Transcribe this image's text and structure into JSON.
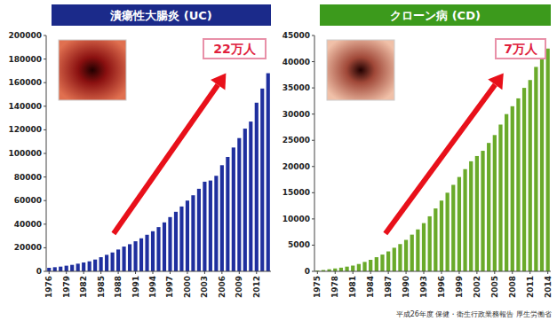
{
  "chart_data": [
    {
      "type": "bar",
      "title": "潰瘍性大腸炎 (UC)",
      "annotations": [
        "22万人"
      ],
      "categories": [
        "1976",
        null,
        null,
        "1979",
        null,
        null,
        "1982",
        null,
        null,
        "1985",
        null,
        null,
        "1988",
        null,
        null,
        "1991",
        null,
        null,
        "1994",
        null,
        null,
        "1997",
        null,
        null,
        "2000",
        null,
        null,
        "2003",
        null,
        null,
        "2006",
        null,
        null,
        "2009",
        null,
        null,
        "2012",
        null,
        null
      ],
      "values": [
        3000,
        3500,
        4000,
        4800,
        5500,
        6500,
        7500,
        8500,
        10000,
        12000,
        14000,
        16000,
        18500,
        21000,
        23000,
        25500,
        28000,
        31000,
        34000,
        37500,
        41500,
        46000,
        50500,
        55000,
        60000,
        64500,
        70000,
        76000,
        77000,
        81000,
        90000,
        97000,
        105000,
        113000,
        121000,
        127000,
        143000,
        155000,
        168000
      ],
      "color": "#1f2f9e",
      "ylim": [
        0,
        200000
      ],
      "yticks": [
        0,
        20000,
        40000,
        60000,
        80000,
        100000,
        120000,
        140000,
        160000,
        180000,
        200000
      ],
      "grid": false
    },
    {
      "type": "bar",
      "title": "クローン病 (CD)",
      "annotations": [
        "7万人"
      ],
      "categories": [
        "1975",
        null,
        null,
        "1978",
        null,
        null,
        "1981",
        null,
        null,
        "1984",
        null,
        null,
        "1987",
        null,
        null,
        "1990",
        null,
        null,
        "1993",
        null,
        null,
        "1996",
        null,
        null,
        "1999",
        null,
        null,
        "2002",
        null,
        null,
        "2005",
        null,
        null,
        "2008",
        null,
        null,
        "2011",
        null,
        null,
        "2014"
      ],
      "values": [
        150,
        250,
        400,
        550,
        700,
        900,
        1100,
        1400,
        1800,
        2200,
        2700,
        3200,
        3800,
        4500,
        5200,
        6000,
        7000,
        8000,
        9200,
        10500,
        12000,
        13500,
        15000,
        16500,
        18000,
        19500,
        21000,
        22000,
        23000,
        24500,
        26000,
        28000,
        30000,
        31500,
        33000,
        35000,
        36500,
        39000,
        40500,
        42500
      ],
      "color": "#6aaa2a",
      "ylim": [
        0,
        45000
      ],
      "yticks": [
        0,
        5000,
        10000,
        15000,
        20000,
        25000,
        30000,
        35000,
        40000,
        45000
      ],
      "grid": false
    }
  ],
  "source": "平成26年度 保健・衛生行政業務報告 厚生労働省"
}
